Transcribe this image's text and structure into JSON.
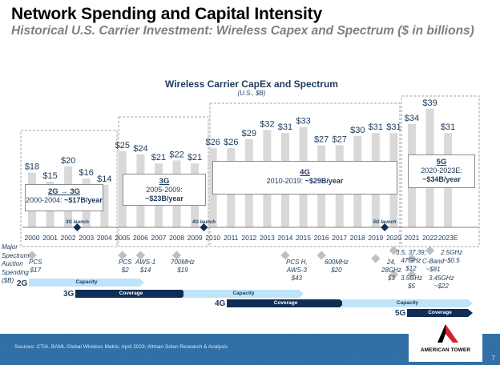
{
  "header": {
    "title": "Network Spending and Capital Intensity",
    "subtitle": "Historical U.S. Carrier Investment: Wireless Capex and Spectrum ($ in billions)"
  },
  "chart_data": {
    "type": "bar",
    "title": "Wireless Carrier CapEx and Spectrum",
    "subtitle": "(U.S., $B)",
    "xlabel": "",
    "ylabel": "",
    "ylim": [
      0,
      40
    ],
    "grid": false,
    "categories": [
      "2000",
      "2001",
      "2002",
      "2003",
      "2004",
      "2005",
      "2006",
      "2007",
      "2008",
      "2009",
      "2010",
      "2011",
      "2012",
      "2013",
      "2014",
      "2015",
      "2016",
      "2017",
      "2018",
      "2019",
      "2020",
      "2021",
      "2022",
      "2023E"
    ],
    "values": [
      18,
      15,
      20,
      16,
      14,
      25,
      24,
      21,
      22,
      21,
      26,
      26,
      29,
      32,
      31,
      33,
      27,
      27,
      30,
      31,
      31,
      34,
      39,
      31
    ],
    "data_labels": [
      "$18",
      "$15",
      "$20",
      "$16",
      "$14",
      "$25",
      "$24",
      "$21",
      "$22",
      "$21",
      "$26",
      "$26",
      "$29",
      "$32",
      "$31",
      "$33",
      "$27",
      "$27",
      "$30",
      "$31",
      "$31",
      "$34",
      "$39",
      "$31"
    ],
    "bar_color": "#d9d9d9",
    "label_color": "#1b3a5c",
    "eras": [
      {
        "name": "2G → 3G",
        "line1": "2000-2004: ",
        "line2": "~$17B/year",
        "start": "2000",
        "end": "2004"
      },
      {
        "name": "3G",
        "line1": "2005-2009:",
        "line2": "~$23B/year",
        "start": "2005",
        "end": "2009"
      },
      {
        "name": "4G",
        "line1": "2010-2019: ",
        "line2": "~$29B/year",
        "start": "2010",
        "end": "2019"
      },
      {
        "name": "5G",
        "line1": "2020-2023E:",
        "line2": "~$34B/year",
        "start": "2020",
        "end": "2023E"
      }
    ],
    "launches": [
      {
        "label": "3G launch",
        "at": 2.5
      },
      {
        "label": "4G launch",
        "at": 9.5
      },
      {
        "label": "5G launch",
        "at": 19.5
      }
    ]
  },
  "spectrum": {
    "side_label": [
      "Major",
      "Spectrum",
      "Auction",
      "Spending",
      "($B)"
    ],
    "auctions": [
      {
        "lines": [
          "PCS",
          "$17"
        ],
        "year_index": 0
      },
      {
        "lines": [
          "PCS",
          "$2"
        ],
        "year_index": 5
      },
      {
        "lines": [
          "AWS-1",
          "$14"
        ],
        "year_index": 6
      },
      {
        "lines": [
          "700MHz",
          "$19"
        ],
        "year_index": 8
      },
      {
        "lines": [
          "PCS H,",
          "AWS-3",
          "$43"
        ],
        "year_index": 14
      },
      {
        "lines": [
          "600MHz",
          "$20"
        ],
        "year_index": 16
      },
      {
        "lines": [
          "24,",
          "28GHz",
          "$3"
        ],
        "year_index": 19
      },
      {
        "lines": [
          "3.5, 37,39,",
          "47GHz",
          "$12"
        ],
        "year_index": 20
      },
      {
        "lines": [
          "3.5GHz",
          "$5"
        ],
        "year_index": 20
      },
      {
        "lines": [
          "C-Band",
          "~$81"
        ],
        "year_index": 21
      },
      {
        "lines": [
          "3.45GHz",
          "~$22"
        ],
        "year_index": 21
      },
      {
        "lines": [
          "2.5GHz",
          "~$0.5"
        ],
        "year_index": 22
      }
    ]
  },
  "generations": [
    {
      "label": "2G",
      "phases": [
        {
          "type": "Capacity"
        }
      ]
    },
    {
      "label": "3G",
      "phases": [
        {
          "type": "Coverage"
        },
        {
          "type": "Capacity"
        }
      ]
    },
    {
      "label": "4G",
      "phases": [
        {
          "type": "Coverage"
        },
        {
          "type": "Capacity"
        }
      ]
    },
    {
      "label": "5G",
      "phases": [
        {
          "type": "Coverage"
        }
      ]
    }
  ],
  "footer": {
    "sources": "Sources: CTIA, BAML Global Wireless Matrix, April 2023; Altman Solon Research & Analysis",
    "page_number": "7",
    "logo_text": "AMERICAN TOWER"
  },
  "colors": {
    "navy": "#0f2e55",
    "light_blue": "#bfe3f8",
    "footer_blue": "#2e6da4",
    "logo_red": "#d2222d"
  }
}
